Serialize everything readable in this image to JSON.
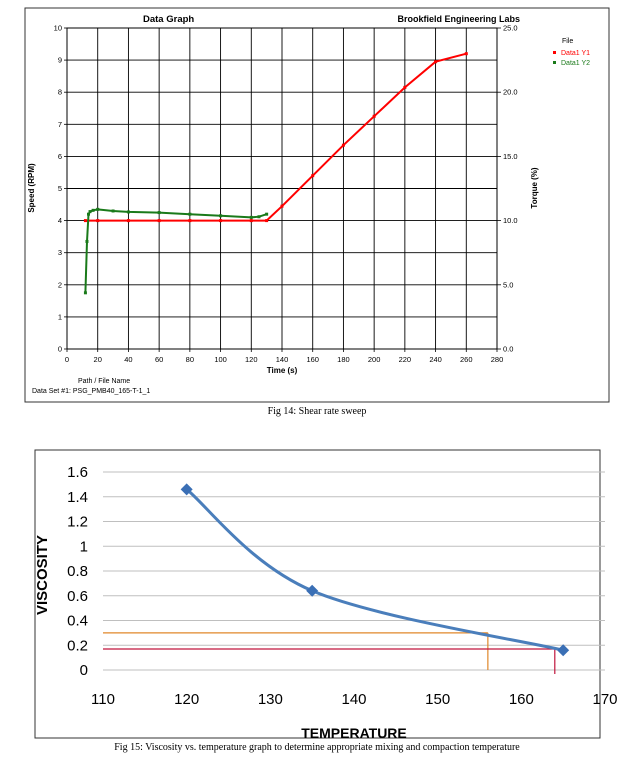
{
  "figures": [
    {
      "caption": "Fig 14: Shear rate sweep",
      "header_title": "Data Graph",
      "header_company": "Brookfield Engineering Labs",
      "legend_title": "File",
      "footer_label": "Path / File Name",
      "footer_value": "Data Set #1: PSG_PMB40_165-T-1_1"
    },
    {
      "caption": "Fig 15: Viscosity vs. temperature graph to determine appropriate mixing and compaction temperature"
    }
  ],
  "colors": {
    "series_y1": "#ff0000",
    "series_y2": "#1a7a1a",
    "viscosity_line": "#4a7ebb",
    "marker": "#3a6fb5",
    "orange_line": "#e0872a",
    "red_line": "#c0143c"
  },
  "chart_data": [
    {
      "type": "line",
      "title": "Data Graph",
      "subtitle": "Brookfield Engineering Labs",
      "xlabel": "Time (s)",
      "ylabel": "Speed (RPM)",
      "y2label": "Torque (%)",
      "xlim": [
        0,
        280
      ],
      "ylim": [
        0,
        10
      ],
      "y2lim": [
        0,
        25
      ],
      "xticks": [
        0,
        20,
        40,
        60,
        80,
        100,
        120,
        140,
        160,
        180,
        200,
        220,
        240,
        260,
        280
      ],
      "yticks": [
        0,
        1,
        2,
        3,
        4,
        5,
        6,
        7,
        8,
        9,
        10
      ],
      "y2ticks": [
        "0.0",
        "5.0",
        "10.0",
        "15.0",
        "20.0",
        "25.0"
      ],
      "grid": true,
      "legend_position": "top-right",
      "series": [
        {
          "name": "Data1 Y1",
          "color": "#ff0000",
          "x": [
            12,
            20,
            40,
            60,
            80,
            100,
            120,
            130,
            140,
            160,
            180,
            200,
            220,
            240,
            260
          ],
          "y": [
            4.0,
            4.0,
            4.0,
            4.0,
            4.0,
            4.0,
            4.0,
            4.0,
            4.45,
            5.4,
            6.35,
            7.25,
            8.15,
            8.95,
            9.2
          ]
        },
        {
          "name": "Data1 Y2",
          "color": "#1a7a1a",
          "x": [
            12,
            13,
            14,
            15,
            17,
            20,
            30,
            40,
            60,
            80,
            100,
            120,
            125,
            130
          ],
          "y": [
            1.75,
            3.35,
            4.2,
            4.28,
            4.32,
            4.35,
            4.3,
            4.27,
            4.25,
            4.2,
            4.15,
            4.1,
            4.12,
            4.2
          ]
        }
      ]
    },
    {
      "type": "line",
      "title": "",
      "xlabel": "TEMPERATURE",
      "ylabel": "VISCOSITY",
      "xlim": [
        110,
        170
      ],
      "ylim": [
        0,
        1.6
      ],
      "xticks": [
        "110",
        "120",
        "130",
        "140",
        "150",
        "160",
        "170"
      ],
      "yticks": [
        "0",
        "0.2",
        "0.4",
        "0.6",
        "0.8",
        "1",
        "1.2",
        "1.4",
        "1.6"
      ],
      "grid": true,
      "series": [
        {
          "x": [
            120,
            135,
            165
          ],
          "y": [
            1.46,
            0.64,
            0.16
          ]
        }
      ],
      "guide_lines": [
        {
          "color": "orange",
          "y": 0.3,
          "x_end": 156
        },
        {
          "color": "red",
          "y": 0.17,
          "x_end": 164
        }
      ]
    }
  ]
}
